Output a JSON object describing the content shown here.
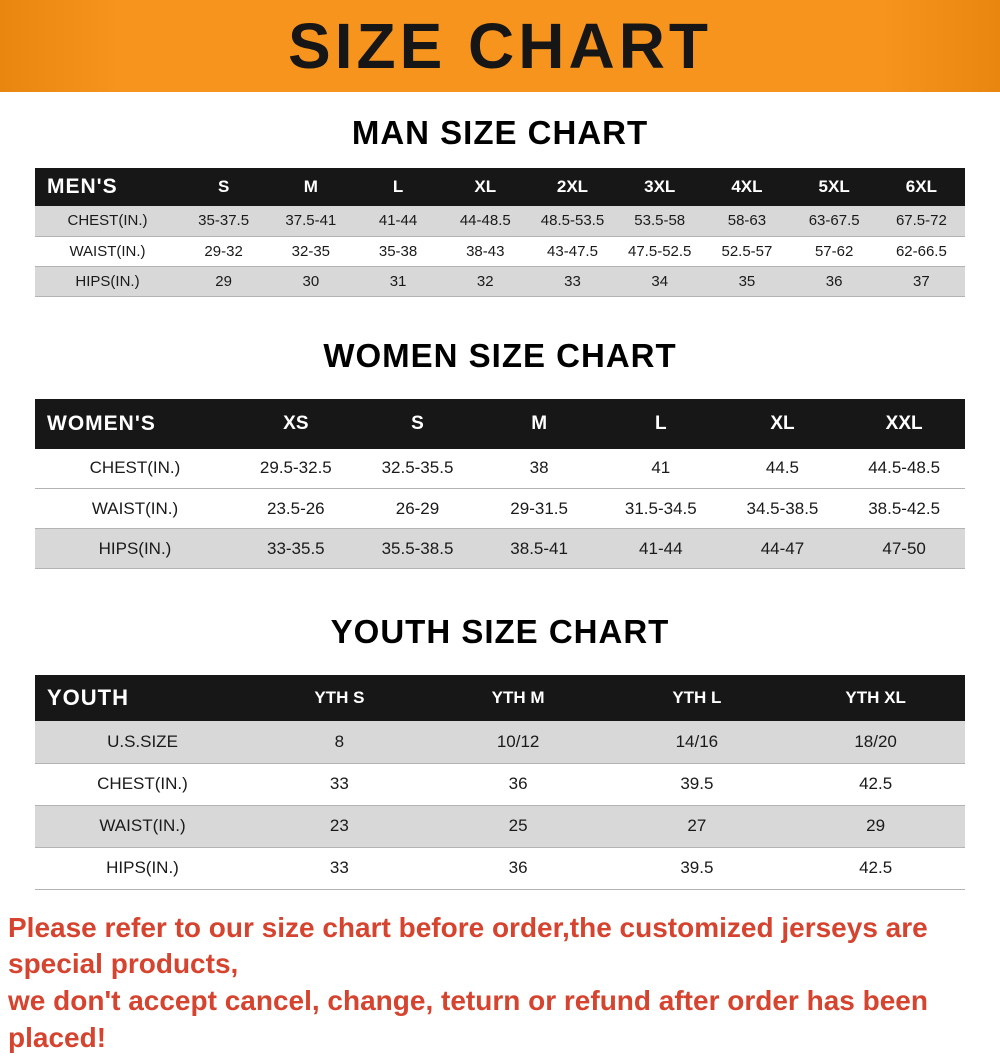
{
  "banner": {
    "title": "SIZE CHART"
  },
  "colors": {
    "banner-bg": "#f7941e",
    "header-bg": "#171717",
    "stripe": "#d8d8d8",
    "note-red": "#d6432e"
  },
  "chart_data": [
    {
      "type": "table",
      "id": "men",
      "title": "MAN SIZE CHART",
      "header_label": "MEN'S",
      "columns": [
        "S",
        "M",
        "L",
        "XL",
        "2XL",
        "3XL",
        "4XL",
        "5XL",
        "6XL"
      ],
      "rows": [
        {
          "label": "CHEST(IN.)",
          "values": [
            "35-37.5",
            "37.5-41",
            "41-44",
            "44-48.5",
            "48.5-53.5",
            "53.5-58",
            "58-63",
            "63-67.5",
            "67.5-72"
          ]
        },
        {
          "label": "WAIST(IN.)",
          "values": [
            "29-32",
            "32-35",
            "35-38",
            "38-43",
            "43-47.5",
            "47.5-52.5",
            "52.5-57",
            "57-62",
            "62-66.5"
          ]
        },
        {
          "label": "HIPS(IN.)",
          "values": [
            "29",
            "30",
            "31",
            "32",
            "33",
            "34",
            "35",
            "36",
            "37"
          ]
        }
      ]
    },
    {
      "type": "table",
      "id": "women",
      "title": "WOMEN SIZE CHART",
      "header_label": "WOMEN'S",
      "columns": [
        "XS",
        "S",
        "M",
        "L",
        "XL",
        "XXL"
      ],
      "rows": [
        {
          "label": "CHEST(IN.)",
          "values": [
            "29.5-32.5",
            "32.5-35.5",
            "38",
            "41",
            "44.5",
            "44.5-48.5"
          ]
        },
        {
          "label": "WAIST(IN.)",
          "values": [
            "23.5-26",
            "26-29",
            "29-31.5",
            "31.5-34.5",
            "34.5-38.5",
            "38.5-42.5"
          ]
        },
        {
          "label": "HIPS(IN.)",
          "values": [
            "33-35.5",
            "35.5-38.5",
            "38.5-41",
            "41-44",
            "44-47",
            "47-50"
          ]
        }
      ]
    },
    {
      "type": "table",
      "id": "youth",
      "title": "YOUTH SIZE CHART",
      "header_label": "YOUTH",
      "columns": [
        "YTH S",
        "YTH M",
        "YTH L",
        "YTH XL"
      ],
      "rows": [
        {
          "label": "U.S.SIZE",
          "values": [
            "8",
            "10/12",
            "14/16",
            "18/20"
          ]
        },
        {
          "label": "CHEST(IN.)",
          "values": [
            "33",
            "36",
            "39.5",
            "42.5"
          ]
        },
        {
          "label": "WAIST(IN.)",
          "values": [
            "23",
            "25",
            "27",
            "29"
          ]
        },
        {
          "label": "HIPS(IN.)",
          "values": [
            "33",
            "36",
            "39.5",
            "42.5"
          ]
        }
      ]
    }
  ],
  "footer": {
    "line1": "Please refer to our size chart before order,the customized jerseys are special products,",
    "line2": "we don't accept cancel, change, teturn or refund after order has been placed!"
  }
}
